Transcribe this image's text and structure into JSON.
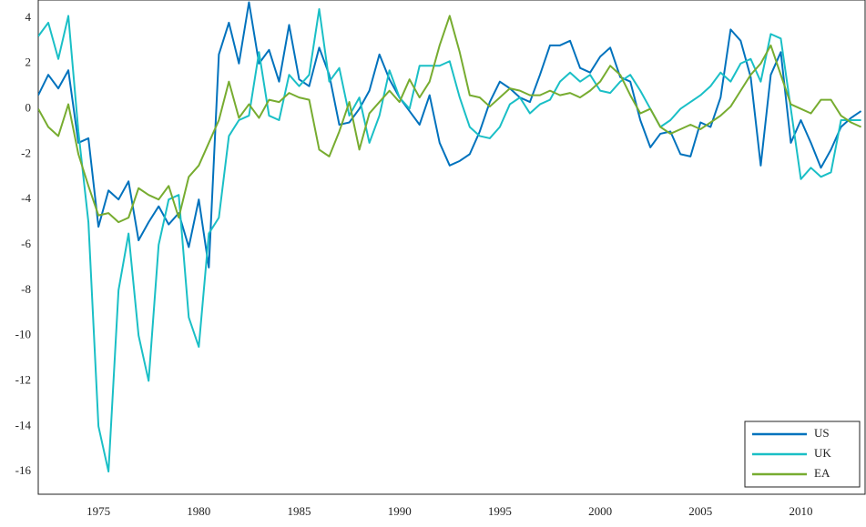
{
  "chart_data": {
    "type": "line",
    "x": [
      1972.0,
      1972.5,
      1973.0,
      1973.5,
      1974.0,
      1974.5,
      1975.0,
      1975.5,
      1976.0,
      1976.5,
      1977.0,
      1977.5,
      1978.0,
      1978.5,
      1979.0,
      1979.5,
      1980.0,
      1980.5,
      1981.0,
      1981.5,
      1982.0,
      1982.5,
      1983.0,
      1983.5,
      1984.0,
      1984.5,
      1985.0,
      1985.5,
      1986.0,
      1986.5,
      1987.0,
      1987.5,
      1988.0,
      1988.5,
      1989.0,
      1989.5,
      1990.0,
      1990.5,
      1991.0,
      1991.5,
      1992.0,
      1992.5,
      1993.0,
      1993.5,
      1994.0,
      1994.5,
      1995.0,
      1995.5,
      1996.0,
      1996.5,
      1997.0,
      1997.5,
      1998.0,
      1998.5,
      1999.0,
      1999.5,
      2000.0,
      2000.5,
      2001.0,
      2001.5,
      2002.0,
      2002.5,
      2003.0,
      2003.5,
      2004.0,
      2004.5,
      2005.0,
      2005.5,
      2006.0,
      2006.5,
      2007.0,
      2007.5,
      2008.0,
      2008.5,
      2009.0,
      2009.5,
      2010.0,
      2010.5,
      2011.0,
      2011.5,
      2012.0,
      2012.5,
      2013.0
    ],
    "series": [
      {
        "name": "US",
        "color": "#0072bd",
        "values": [
          0.6,
          1.5,
          0.9,
          1.7,
          -1.5,
          -1.3,
          -5.2,
          -3.6,
          -4.0,
          -3.2,
          -5.8,
          -5.0,
          -4.3,
          -5.1,
          -4.6,
          -6.1,
          -4.0,
          -7.0,
          2.4,
          3.8,
          2.0,
          4.7,
          2.0,
          2.6,
          1.2,
          3.7,
          1.3,
          1.0,
          2.7,
          1.5,
          -0.7,
          -0.6,
          0.0,
          0.8,
          2.4,
          1.3,
          0.5,
          -0.1,
          -0.7,
          0.6,
          -1.5,
          -2.5,
          -2.3,
          -2.0,
          -1.0,
          0.3,
          1.2,
          0.9,
          0.5,
          0.3,
          1.5,
          2.8,
          2.8,
          3.0,
          1.8,
          1.6,
          2.3,
          2.7,
          1.4,
          1.2,
          -0.5,
          -1.7,
          -1.1,
          -1.0,
          -2.0,
          -2.1,
          -0.6,
          -0.8,
          0.5,
          3.5,
          3.0,
          1.4,
          -2.5,
          1.5,
          2.5,
          -1.5,
          -0.5,
          -1.5,
          -2.6,
          -1.8,
          -0.8,
          -0.4,
          -0.1
        ]
      },
      {
        "name": "UK",
        "color": "#1abfc6",
        "values": [
          3.2,
          3.8,
          2.2,
          4.1,
          -1.0,
          -5.0,
          -14.0,
          -16.0,
          -8.0,
          -5.5,
          -10.0,
          -12.0,
          -6.0,
          -4.0,
          -3.8,
          -9.2,
          -10.5,
          -5.5,
          -4.8,
          -1.2,
          -0.5,
          -0.3,
          2.5,
          -0.3,
          -0.5,
          1.5,
          1.0,
          1.5,
          4.4,
          1.2,
          1.8,
          -0.3,
          0.5,
          -1.5,
          -0.3,
          1.7,
          0.5,
          0.0,
          1.9,
          1.9,
          1.9,
          2.1,
          0.5,
          -0.8,
          -1.2,
          -1.3,
          -0.8,
          0.2,
          0.5,
          -0.2,
          0.2,
          0.4,
          1.2,
          1.6,
          1.2,
          1.5,
          0.8,
          0.7,
          1.2,
          1.5,
          0.8,
          0.0,
          -0.8,
          -0.5,
          0.0,
          0.3,
          0.6,
          1.0,
          1.6,
          1.2,
          2.0,
          2.2,
          1.2,
          3.3,
          3.1,
          0.0,
          -3.1,
          -2.6,
          -3.0,
          -2.8,
          -0.5,
          -0.5,
          -0.5
        ]
      },
      {
        "name": "EA",
        "color": "#77ac30",
        "values": [
          0.0,
          -0.8,
          -1.2,
          0.2,
          -2.0,
          -3.4,
          -4.7,
          -4.6,
          -5.0,
          -4.8,
          -3.5,
          -3.8,
          -4.0,
          -3.4,
          -4.8,
          -3.0,
          -2.5,
          -1.5,
          -0.5,
          1.2,
          -0.4,
          0.2,
          -0.4,
          0.4,
          0.3,
          0.7,
          0.5,
          0.4,
          -1.8,
          -2.1,
          -1.0,
          0.3,
          -1.8,
          -0.2,
          0.3,
          0.8,
          0.3,
          1.3,
          0.5,
          1.2,
          2.8,
          4.1,
          2.5,
          0.6,
          0.5,
          0.1,
          0.5,
          0.9,
          0.8,
          0.6,
          0.6,
          0.8,
          0.6,
          0.7,
          0.5,
          0.8,
          1.2,
          1.9,
          1.5,
          0.6,
          -0.2,
          0.0,
          -0.8,
          -1.1,
          -0.9,
          -0.7,
          -0.9,
          -0.6,
          -0.3,
          0.1,
          0.8,
          1.5,
          2.0,
          2.8,
          1.5,
          0.2,
          0.0,
          -0.2,
          0.4,
          0.4,
          -0.3,
          -0.6,
          -0.8
        ]
      }
    ],
    "xlim": [
      1972,
      2013.2
    ],
    "ylim": [
      -17,
      4.8
    ],
    "xticks": [
      1975,
      1980,
      1985,
      1990,
      1995,
      2000,
      2005,
      2010
    ],
    "yticks": [
      -16,
      -14,
      -12,
      -10,
      -8,
      -6,
      -4,
      -2,
      0,
      2,
      4
    ],
    "grid": true,
    "legend": "lower right"
  }
}
